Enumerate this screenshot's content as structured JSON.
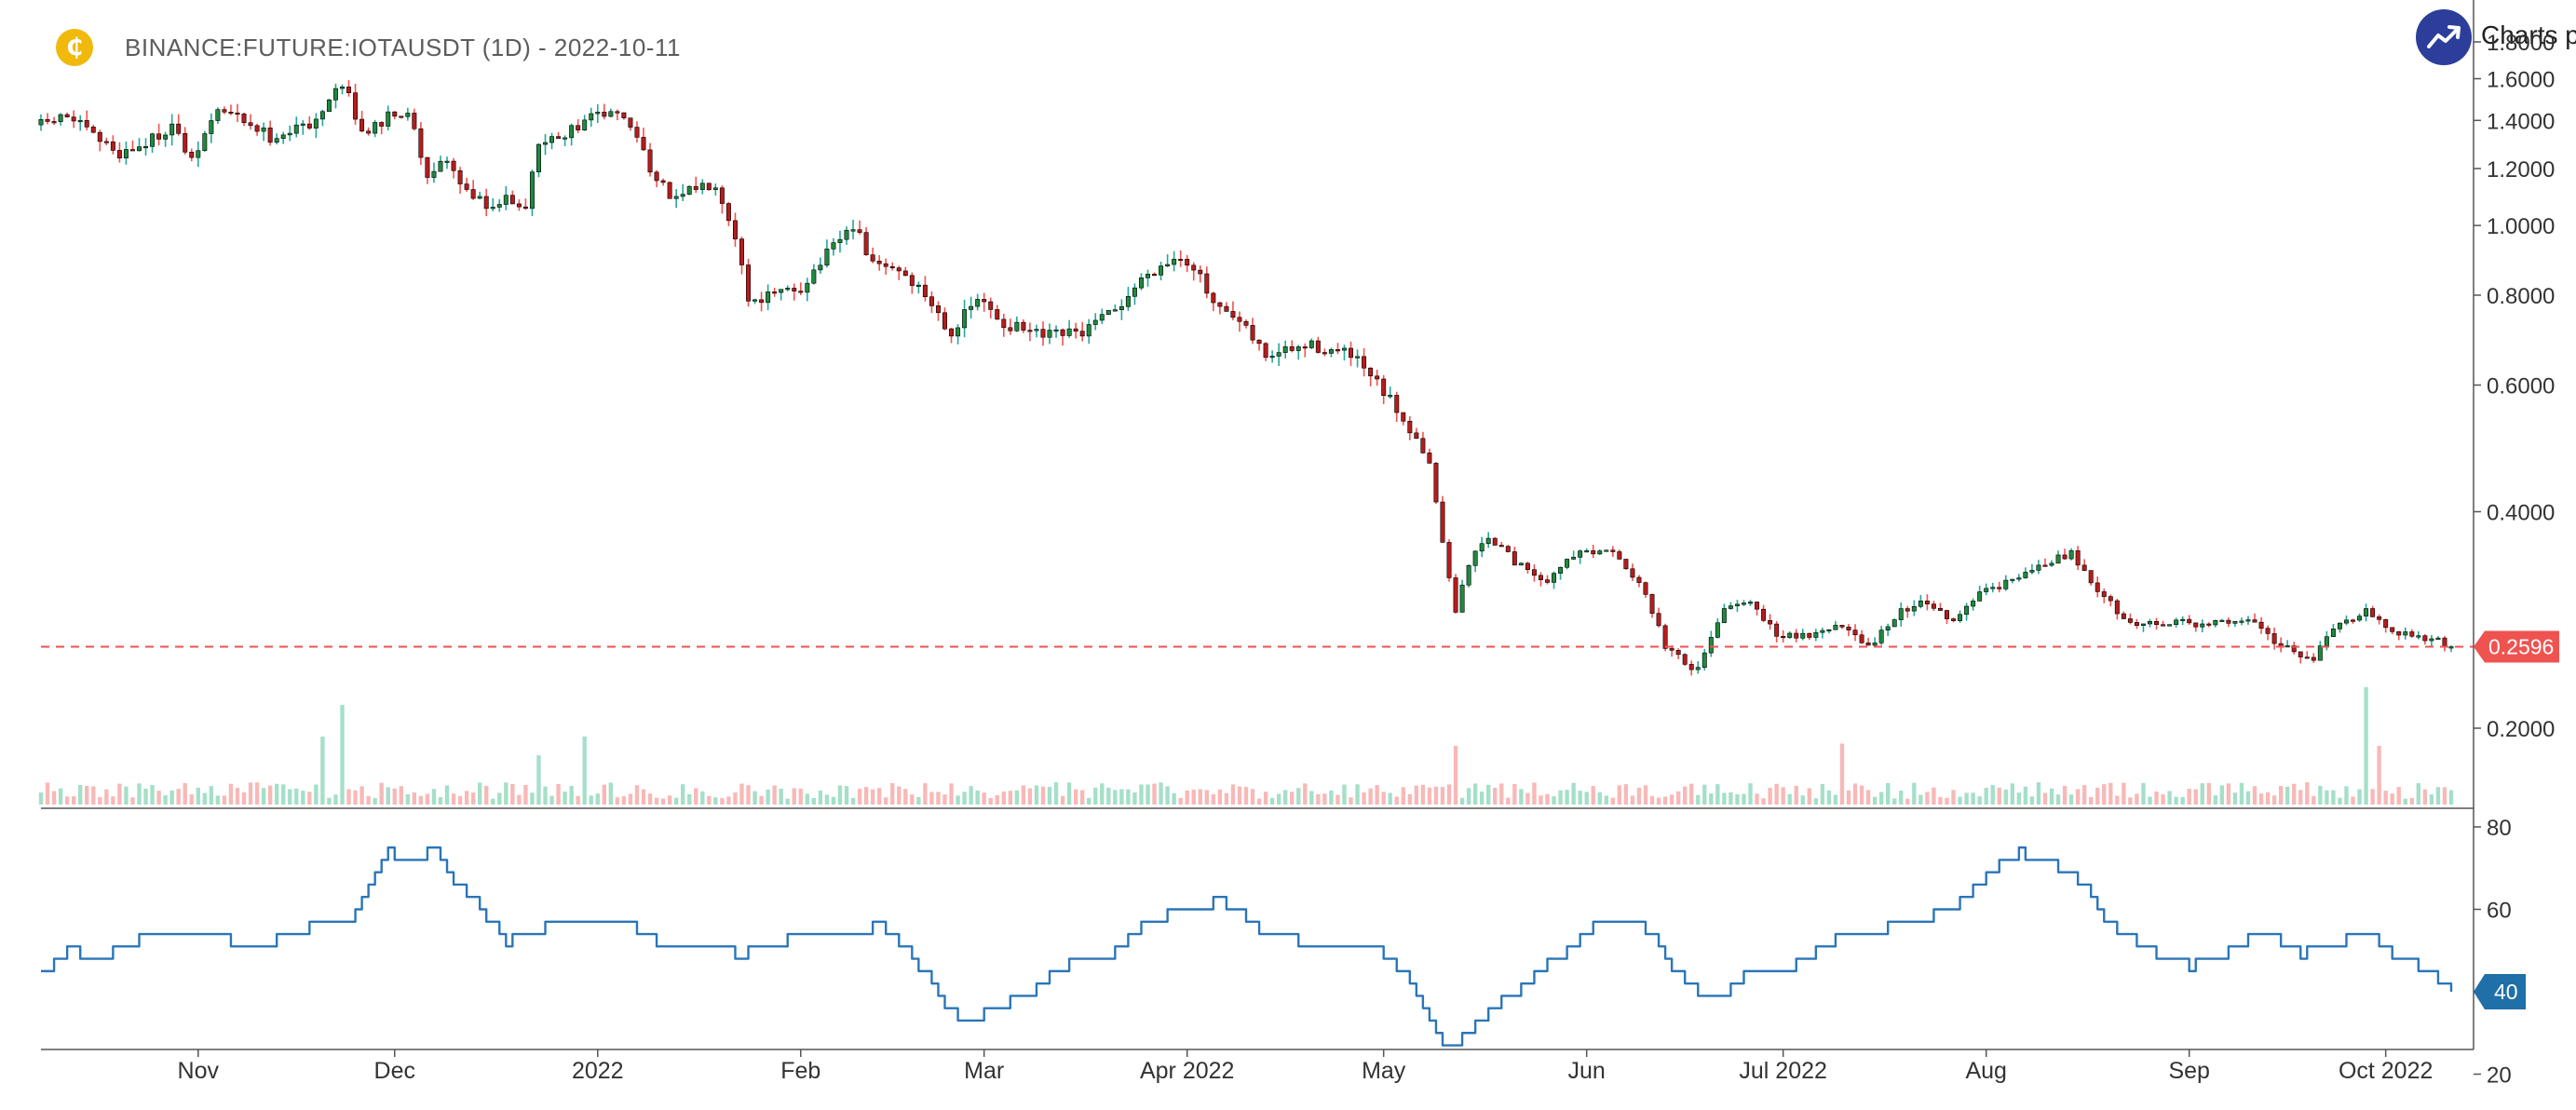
{
  "header": {
    "title": "BINANCE:FUTURE:IOTAUSDT (1D) - 2022-10-11",
    "coin_glyph": "₵",
    "brand_text": "Charts p"
  },
  "colors": {
    "up": "#26a69a",
    "up_body": "#1e8a3e",
    "down": "#ef5350",
    "down_body": "#b71c1c",
    "vol_up": "#a5dfc8",
    "vol_down": "#f7b9b7",
    "indicator": "#2a75b8",
    "last_price": "#ef5350",
    "brand": "#2c3e9a",
    "coin": "#f0b90b"
  },
  "chart_data": [
    {
      "type": "candlestick",
      "symbol": "BINANCE:FUTURE:IOTAUSDT",
      "interval": "1D",
      "y_scale": "log",
      "y_ticks": [
        "1.8000",
        "1.6000",
        "1.4000",
        "1.2000",
        "1.0000",
        "0.8000",
        "0.6000",
        "0.4000",
        "0.2000"
      ],
      "x_ticks": [
        "Nov",
        "Dec",
        "2022",
        "Feb",
        "Mar",
        "Apr 2022",
        "May",
        "Jun",
        "Jul 2022",
        "Aug",
        "Sep",
        "Oct 2022"
      ],
      "x_tick_dates": [
        "2021-11-01",
        "2021-12-01",
        "2022-01-01",
        "2022-02-01",
        "2022-03-01",
        "2022-04-01",
        "2022-05-01",
        "2022-06-01",
        "2022-07-01",
        "2022-08-01",
        "2022-09-01",
        "2022-10-01"
      ],
      "date_range": [
        "2021-10-08",
        "2022-10-11"
      ],
      "close_path": [
        [
          "2021-10-08",
          1.38
        ],
        [
          "2021-10-12",
          1.42
        ],
        [
          "2021-10-16",
          1.33
        ],
        [
          "2021-10-20",
          1.26
        ],
        [
          "2021-10-24",
          1.3
        ],
        [
          "2021-10-28",
          1.38
        ],
        [
          "2021-10-31",
          1.22
        ],
        [
          "2021-11-04",
          1.45
        ],
        [
          "2021-11-08",
          1.4
        ],
        [
          "2021-11-12",
          1.33
        ],
        [
          "2021-11-16",
          1.36
        ],
        [
          "2021-11-20",
          1.42
        ],
        [
          "2021-11-23",
          1.58
        ],
        [
          "2021-11-26",
          1.34
        ],
        [
          "2021-11-30",
          1.42
        ],
        [
          "2021-12-03",
          1.44
        ],
        [
          "2021-12-06",
          1.18
        ],
        [
          "2021-12-09",
          1.22
        ],
        [
          "2021-12-12",
          1.12
        ],
        [
          "2021-12-15",
          1.06
        ],
        [
          "2021-12-18",
          1.1
        ],
        [
          "2021-12-21",
          1.06
        ],
        [
          "2021-12-23",
          1.3
        ],
        [
          "2021-12-27",
          1.33
        ],
        [
          "2021-12-30",
          1.4
        ],
        [
          "2022-01-02",
          1.43
        ],
        [
          "2022-01-04",
          1.44
        ],
        [
          "2022-01-07",
          1.33
        ],
        [
          "2022-01-10",
          1.15
        ],
        [
          "2022-01-13",
          1.08
        ],
        [
          "2022-01-16",
          1.13
        ],
        [
          "2022-01-19",
          1.15
        ],
        [
          "2022-01-22",
          0.97
        ],
        [
          "2022-01-24",
          0.79
        ],
        [
          "2022-01-28",
          0.8
        ],
        [
          "2022-02-01",
          0.82
        ],
        [
          "2022-02-05",
          0.91
        ],
        [
          "2022-02-09",
          1.0
        ],
        [
          "2022-02-12",
          0.88
        ],
        [
          "2022-02-16",
          0.87
        ],
        [
          "2022-02-20",
          0.8
        ],
        [
          "2022-02-24",
          0.71
        ],
        [
          "2022-02-28",
          0.79
        ],
        [
          "2022-03-04",
          0.73
        ],
        [
          "2022-03-10",
          0.7
        ],
        [
          "2022-03-16",
          0.71
        ],
        [
          "2022-03-21",
          0.76
        ],
        [
          "2022-03-26",
          0.86
        ],
        [
          "2022-03-31",
          0.91
        ],
        [
          "2022-04-02",
          0.88
        ],
        [
          "2022-04-05",
          0.77
        ],
        [
          "2022-04-09",
          0.73
        ],
        [
          "2022-04-13",
          0.66
        ],
        [
          "2022-04-20",
          0.68
        ],
        [
          "2022-04-26",
          0.66
        ],
        [
          "2022-04-30",
          0.6
        ],
        [
          "2022-05-04",
          0.54
        ],
        [
          "2022-05-08",
          0.47
        ],
        [
          "2022-05-10",
          0.36
        ],
        [
          "2022-05-12",
          0.29
        ],
        [
          "2022-05-14",
          0.34
        ],
        [
          "2022-05-17",
          0.37
        ],
        [
          "2022-05-21",
          0.34
        ],
        [
          "2022-05-26",
          0.32
        ],
        [
          "2022-05-30",
          0.35
        ],
        [
          "2022-06-05",
          0.35
        ],
        [
          "2022-06-09",
          0.32
        ],
        [
          "2022-06-13",
          0.26
        ],
        [
          "2022-06-18",
          0.24
        ],
        [
          "2022-06-22",
          0.29
        ],
        [
          "2022-06-26",
          0.3
        ],
        [
          "2022-06-30",
          0.27
        ],
        [
          "2022-07-05",
          0.27
        ],
        [
          "2022-07-10",
          0.28
        ],
        [
          "2022-07-14",
          0.26
        ],
        [
          "2022-07-19",
          0.29
        ],
        [
          "2022-07-23",
          0.3
        ],
        [
          "2022-07-27",
          0.28
        ],
        [
          "2022-07-31",
          0.31
        ],
        [
          "2022-08-05",
          0.32
        ],
        [
          "2022-08-10",
          0.34
        ],
        [
          "2022-08-14",
          0.35
        ],
        [
          "2022-08-18",
          0.31
        ],
        [
          "2022-08-23",
          0.28
        ],
        [
          "2022-08-28",
          0.28
        ],
        [
          "2022-09-02",
          0.28
        ],
        [
          "2022-09-07",
          0.28
        ],
        [
          "2022-09-11",
          0.28
        ],
        [
          "2022-09-15",
          0.26
        ],
        [
          "2022-09-20",
          0.25
        ],
        [
          "2022-09-24",
          0.28
        ],
        [
          "2022-09-28",
          0.29
        ],
        [
          "2022-10-02",
          0.27
        ],
        [
          "2022-10-06",
          0.27
        ],
        [
          "2022-10-11",
          0.2596
        ]
      ],
      "volume_spikes": [
        [
          "2021-11-23",
          0.85
        ],
        [
          "2021-11-20",
          0.58
        ],
        [
          "2021-12-23",
          0.42
        ],
        [
          "2021-12-30",
          0.58
        ],
        [
          "2022-05-12",
          0.5
        ],
        [
          "2022-07-10",
          0.52
        ],
        [
          "2022-09-28",
          1.0
        ],
        [
          "2022-09-30",
          0.5
        ]
      ],
      "last_price": "0.2596"
    },
    {
      "type": "line",
      "panel": "indicator",
      "y_ticks": [
        "80",
        "60",
        "40",
        "20"
      ],
      "ylim": [
        20,
        85
      ],
      "points": [
        [
          "2021-10-08",
          45
        ],
        [
          "2021-10-12",
          50
        ],
        [
          "2021-10-16",
          48
        ],
        [
          "2021-10-22",
          52
        ],
        [
          "2021-10-28",
          55
        ],
        [
          "2021-11-02",
          54
        ],
        [
          "2021-11-08",
          51
        ],
        [
          "2021-11-14",
          53
        ],
        [
          "2021-11-20",
          57
        ],
        [
          "2021-11-24",
          57
        ],
        [
          "2021-11-27",
          65
        ],
        [
          "2021-11-30",
          74
        ],
        [
          "2021-12-03",
          72
        ],
        [
          "2021-12-07",
          74
        ],
        [
          "2021-12-10",
          66
        ],
        [
          "2021-12-14",
          60
        ],
        [
          "2021-12-18",
          52
        ],
        [
          "2021-12-22",
          55
        ],
        [
          "2021-12-27",
          57
        ],
        [
          "2022-01-02",
          58
        ],
        [
          "2022-01-07",
          55
        ],
        [
          "2022-01-12",
          50
        ],
        [
          "2022-01-17",
          52
        ],
        [
          "2022-01-22",
          49
        ],
        [
          "2022-01-27",
          51
        ],
        [
          "2022-02-02",
          55
        ],
        [
          "2022-02-08",
          53
        ],
        [
          "2022-02-13",
          57
        ],
        [
          "2022-02-18",
          49
        ],
        [
          "2022-02-22",
          38
        ],
        [
          "2022-02-26",
          33
        ],
        [
          "2022-03-02",
          35
        ],
        [
          "2022-03-08",
          40
        ],
        [
          "2022-03-14",
          47
        ],
        [
          "2022-03-20",
          49
        ],
        [
          "2022-03-26",
          57
        ],
        [
          "2022-04-01",
          60
        ],
        [
          "2022-04-06",
          62
        ],
        [
          "2022-04-12",
          55
        ],
        [
          "2022-04-18",
          52
        ],
        [
          "2022-04-24",
          51
        ],
        [
          "2022-04-30",
          50
        ],
        [
          "2022-05-04",
          45
        ],
        [
          "2022-05-08",
          33
        ],
        [
          "2022-05-11",
          26
        ],
        [
          "2022-05-14",
          30
        ],
        [
          "2022-05-19",
          38
        ],
        [
          "2022-05-24",
          44
        ],
        [
          "2022-05-30",
          52
        ],
        [
          "2022-06-04",
          58
        ],
        [
          "2022-06-10",
          55
        ],
        [
          "2022-06-15",
          44
        ],
        [
          "2022-06-20",
          38
        ],
        [
          "2022-06-26",
          45
        ],
        [
          "2022-07-02",
          46
        ],
        [
          "2022-07-08",
          52
        ],
        [
          "2022-07-14",
          55
        ],
        [
          "2022-07-20",
          56
        ],
        [
          "2022-07-26",
          60
        ],
        [
          "2022-08-02",
          70
        ],
        [
          "2022-08-06",
          74
        ],
        [
          "2022-08-12",
          70
        ],
        [
          "2022-08-16",
          65
        ],
        [
          "2022-08-20",
          56
        ],
        [
          "2022-08-26",
          50
        ],
        [
          "2022-09-01",
          46
        ],
        [
          "2022-09-06",
          49
        ],
        [
          "2022-09-12",
          55
        ],
        [
          "2022-09-18",
          49
        ],
        [
          "2022-09-24",
          52
        ],
        [
          "2022-09-28",
          54
        ],
        [
          "2022-10-03",
          48
        ],
        [
          "2022-10-07",
          45
        ],
        [
          "2022-10-11",
          40
        ]
      ],
      "last_value": "40"
    }
  ]
}
